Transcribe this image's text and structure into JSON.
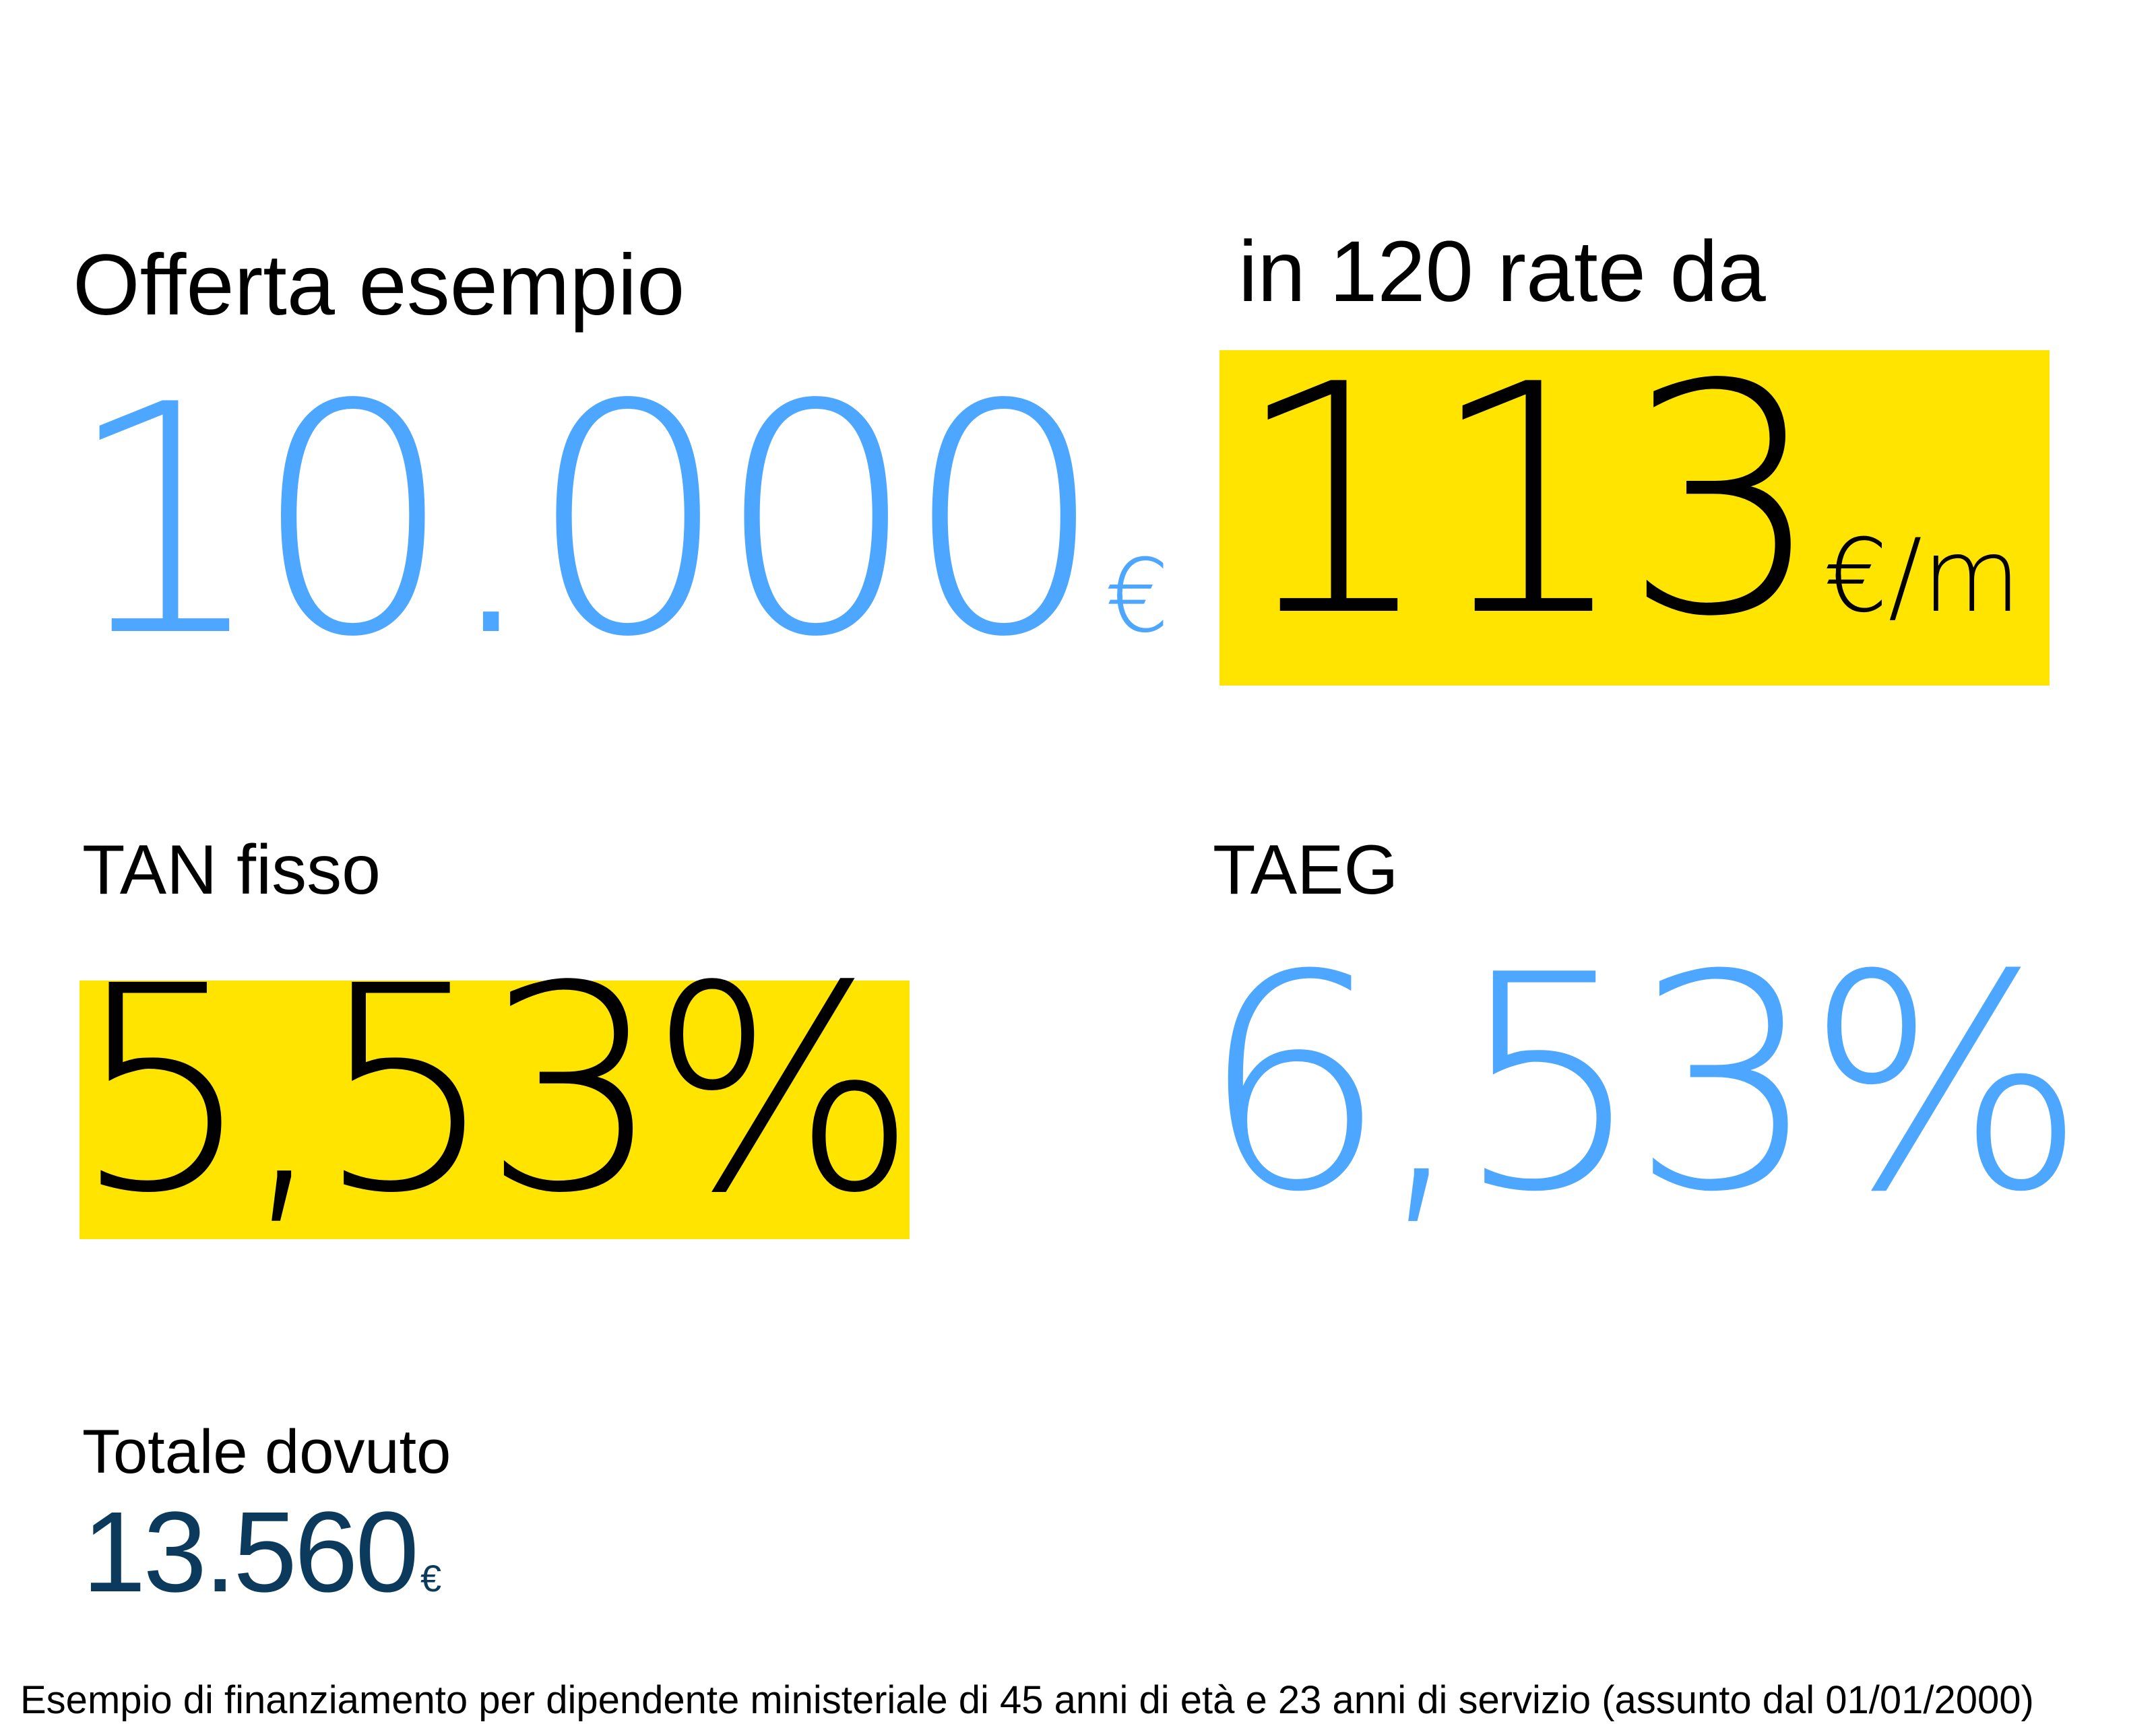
{
  "offer": {
    "title": "Offerta esempio",
    "amount": "10.000",
    "currency": "€"
  },
  "installments": {
    "title": "in 120 rate da",
    "amount": "113",
    "unit": "€/m"
  },
  "tan": {
    "title": "TAN fisso",
    "value": "5,53%"
  },
  "taeg": {
    "title": "TAEG",
    "value": "6,53%"
  },
  "total": {
    "title": "Totale dovuto",
    "amount": "13.560",
    "currency": "€"
  },
  "footnote": "Esempio di finanziamento per dipendente ministeriale di 45 anni di età e 23 anni di servizio (assunto dal 01/01/2000)",
  "colors": {
    "accent_blue": "#4da6ff",
    "highlight_yellow": "#ffe400",
    "dark_navy": "#0b3a5c"
  }
}
